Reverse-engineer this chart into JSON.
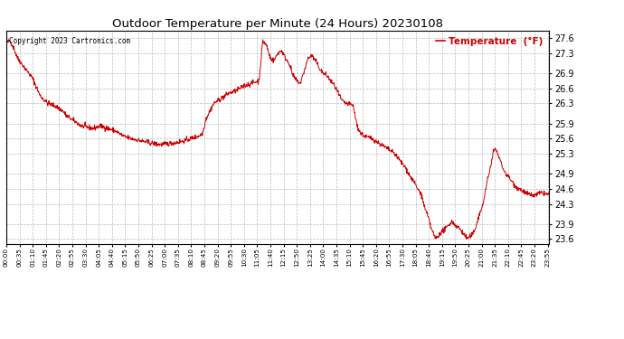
{
  "title": "Outdoor Temperature per Minute (24 Hours) 20230108",
  "copyright_text": "Copyright 2023 Cartronics.com",
  "legend_label": "Temperature  (°F)",
  "yticks": [
    23.6,
    23.9,
    24.3,
    24.6,
    24.9,
    25.3,
    25.6,
    25.9,
    26.3,
    26.6,
    26.9,
    27.3,
    27.6
  ],
  "ymin": 23.5,
  "ymax": 27.75,
  "line_color": "#cc0000",
  "bg_color": "#ffffff",
  "grid_color": "#bbbbbb",
  "title_color": "#000000",
  "copyright_color": "#000000",
  "legend_color": "#cc0000",
  "xtick_interval_minutes": 35,
  "waypoints": [
    [
      0,
      27.5
    ],
    [
      10,
      27.55
    ],
    [
      20,
      27.4
    ],
    [
      30,
      27.2
    ],
    [
      50,
      27.0
    ],
    [
      70,
      26.8
    ],
    [
      90,
      26.45
    ],
    [
      110,
      26.3
    ],
    [
      130,
      26.25
    ],
    [
      150,
      26.15
    ],
    [
      160,
      26.05
    ],
    [
      180,
      25.95
    ],
    [
      200,
      25.85
    ],
    [
      230,
      25.8
    ],
    [
      250,
      25.85
    ],
    [
      270,
      25.8
    ],
    [
      290,
      25.75
    ],
    [
      310,
      25.65
    ],
    [
      330,
      25.6
    ],
    [
      360,
      25.55
    ],
    [
      390,
      25.5
    ],
    [
      410,
      25.48
    ],
    [
      430,
      25.5
    ],
    [
      450,
      25.52
    ],
    [
      470,
      25.55
    ],
    [
      490,
      25.6
    ],
    [
      510,
      25.65
    ],
    [
      520,
      25.7
    ],
    [
      530,
      26.0
    ],
    [
      550,
      26.3
    ],
    [
      570,
      26.4
    ],
    [
      590,
      26.5
    ],
    [
      610,
      26.55
    ],
    [
      620,
      26.6
    ],
    [
      630,
      26.65
    ],
    [
      650,
      26.7
    ],
    [
      670,
      26.75
    ],
    [
      680,
      27.55
    ],
    [
      690,
      27.45
    ],
    [
      700,
      27.2
    ],
    [
      710,
      27.15
    ],
    [
      720,
      27.3
    ],
    [
      730,
      27.35
    ],
    [
      740,
      27.2
    ],
    [
      750,
      27.1
    ],
    [
      760,
      26.85
    ],
    [
      770,
      26.75
    ],
    [
      780,
      26.7
    ],
    [
      800,
      27.2
    ],
    [
      810,
      27.25
    ],
    [
      820,
      27.15
    ],
    [
      830,
      27.0
    ],
    [
      840,
      26.9
    ],
    [
      850,
      26.85
    ],
    [
      860,
      26.75
    ],
    [
      870,
      26.65
    ],
    [
      880,
      26.5
    ],
    [
      890,
      26.35
    ],
    [
      900,
      26.3
    ],
    [
      910,
      26.28
    ],
    [
      920,
      26.25
    ],
    [
      930,
      25.85
    ],
    [
      940,
      25.7
    ],
    [
      950,
      25.65
    ],
    [
      960,
      25.62
    ],
    [
      970,
      25.6
    ],
    [
      980,
      25.55
    ],
    [
      990,
      25.5
    ],
    [
      1000,
      25.45
    ],
    [
      1010,
      25.4
    ],
    [
      1020,
      25.35
    ],
    [
      1030,
      25.3
    ],
    [
      1040,
      25.2
    ],
    [
      1050,
      25.1
    ],
    [
      1060,
      25.0
    ],
    [
      1070,
      24.85
    ],
    [
      1080,
      24.75
    ],
    [
      1090,
      24.6
    ],
    [
      1100,
      24.5
    ],
    [
      1105,
      24.35
    ],
    [
      1110,
      24.2
    ],
    [
      1115,
      24.1
    ],
    [
      1120,
      24.0
    ],
    [
      1125,
      23.85
    ],
    [
      1130,
      23.75
    ],
    [
      1135,
      23.65
    ],
    [
      1140,
      23.62
    ],
    [
      1145,
      23.65
    ],
    [
      1150,
      23.72
    ],
    [
      1155,
      23.75
    ],
    [
      1160,
      23.78
    ],
    [
      1165,
      23.8
    ],
    [
      1170,
      23.85
    ],
    [
      1175,
      23.9
    ],
    [
      1180,
      23.95
    ],
    [
      1185,
      23.92
    ],
    [
      1190,
      23.88
    ],
    [
      1195,
      23.85
    ],
    [
      1200,
      23.82
    ],
    [
      1205,
      23.78
    ],
    [
      1210,
      23.72
    ],
    [
      1215,
      23.68
    ],
    [
      1220,
      23.63
    ],
    [
      1225,
      23.62
    ],
    [
      1230,
      23.65
    ],
    [
      1235,
      23.68
    ],
    [
      1240,
      23.75
    ],
    [
      1245,
      23.85
    ],
    [
      1250,
      24.0
    ],
    [
      1255,
      24.1
    ],
    [
      1260,
      24.2
    ],
    [
      1265,
      24.35
    ],
    [
      1270,
      24.55
    ],
    [
      1275,
      24.75
    ],
    [
      1280,
      24.9
    ],
    [
      1285,
      25.1
    ],
    [
      1290,
      25.3
    ],
    [
      1295,
      25.4
    ],
    [
      1300,
      25.35
    ],
    [
      1305,
      25.25
    ],
    [
      1310,
      25.15
    ],
    [
      1315,
      25.05
    ],
    [
      1320,
      24.95
    ],
    [
      1325,
      24.9
    ],
    [
      1330,
      24.85
    ],
    [
      1335,
      24.8
    ],
    [
      1340,
      24.75
    ],
    [
      1345,
      24.7
    ],
    [
      1350,
      24.65
    ],
    [
      1360,
      24.6
    ],
    [
      1370,
      24.55
    ],
    [
      1380,
      24.5
    ],
    [
      1390,
      24.48
    ],
    [
      1400,
      24.46
    ],
    [
      1410,
      24.5
    ],
    [
      1420,
      24.52
    ],
    [
      1430,
      24.5
    ],
    [
      1439,
      24.48
    ]
  ]
}
